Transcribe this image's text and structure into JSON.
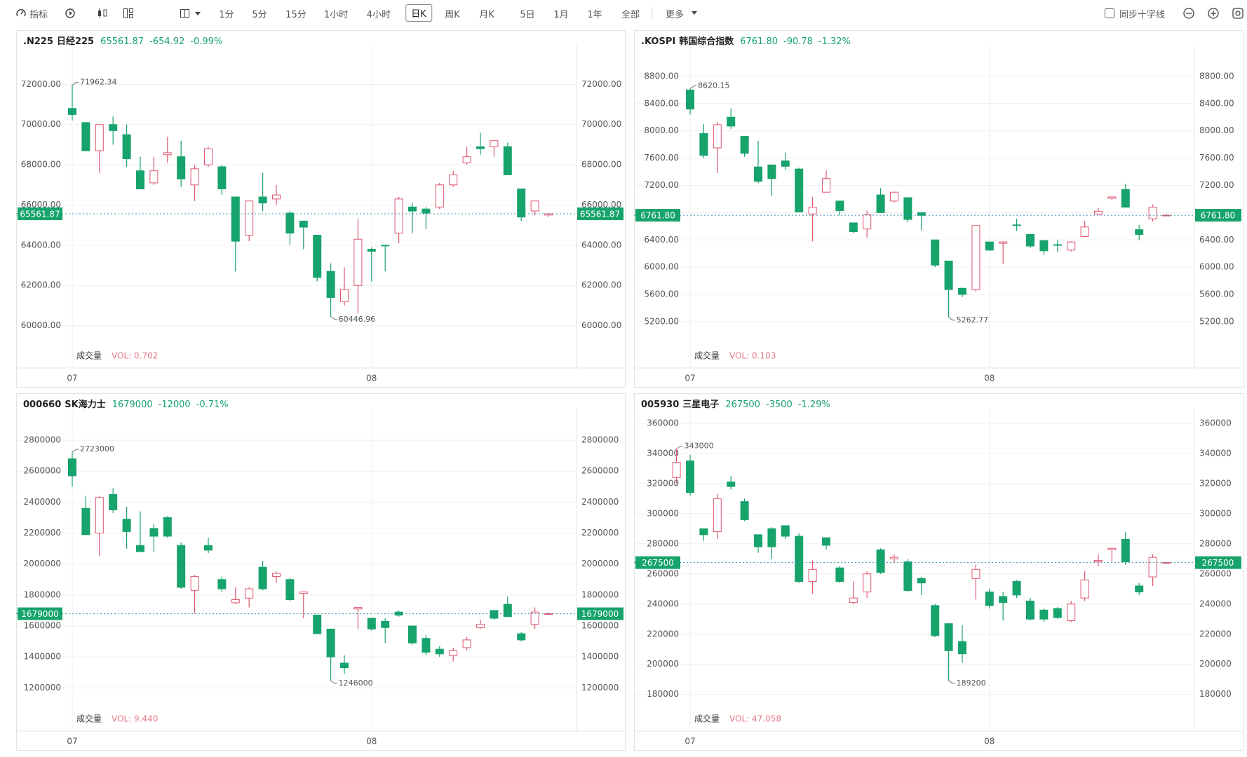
{
  "toolbar": {
    "indicator": "指标",
    "intervals": [
      "1分",
      "5分",
      "15分",
      "1小时",
      "4小时",
      "日K",
      "周K",
      "月K",
      "5日",
      "1月",
      "1年",
      "全部"
    ],
    "more": "更多",
    "sync": "同步十字线"
  },
  "chart_data": [
    {
      "type": "candlestick",
      "symbol": ".N225",
      "name": "日经225",
      "price": "65561.87",
      "change": "-654.92",
      "change_pct": "-0.99%",
      "volume_title": "成交量",
      "volume_label": "VOL: 0.702",
      "up_color": "#e0566e",
      "down_color": "#16a36c",
      "categories": [
        "07",
        null,
        null,
        null,
        null,
        null,
        null,
        null,
        null,
        null,
        null,
        null,
        null,
        null,
        null,
        null,
        null,
        null,
        null,
        null,
        null,
        null,
        "08",
        null,
        null,
        null,
        null,
        null,
        null,
        null,
        null,
        null,
        null,
        null,
        null,
        null
      ],
      "open": [
        70800,
        70100,
        68700,
        70000,
        69500,
        67700,
        67100,
        68500,
        68400,
        67000,
        68000,
        67900,
        66400,
        64500,
        66400,
        66300,
        65600,
        65200,
        64500,
        62700,
        61200,
        62000,
        63800,
        64000,
        64600,
        65900,
        65800,
        65900,
        67000,
        68100,
        68900,
        68900,
        68900,
        66800,
        65700,
        65500
      ],
      "high": [
        71962.34,
        70100,
        70000,
        70400,
        70000,
        68400,
        68400,
        69400,
        69200,
        68000,
        68900,
        68000,
        66400,
        66200,
        67600,
        67000,
        65700,
        65200,
        64500,
        63100,
        62900,
        65300,
        63900,
        64000,
        66400,
        66100,
        65900,
        67100,
        67700,
        68900,
        69600,
        69200,
        69100,
        66800,
        66200,
        65600
      ],
      "low": [
        70200,
        68700,
        67600,
        69000,
        67900,
        66800,
        67000,
        68100,
        66900,
        66200,
        67900,
        66500,
        62700,
        64200,
        65700,
        66000,
        64000,
        63800,
        62200,
        60446.96,
        61000,
        60600,
        62200,
        62700,
        64100,
        64600,
        64800,
        65800,
        66900,
        68000,
        68500,
        68400,
        67500,
        65200,
        65500,
        65400
      ],
      "close": [
        70500,
        68700,
        70000,
        69700,
        68300,
        66800,
        67700,
        68600,
        67300,
        67800,
        68800,
        66800,
        64200,
        66200,
        66100,
        66500,
        64600,
        64900,
        62400,
        61400,
        61800,
        64300,
        63700,
        63990,
        66300,
        65700,
        65600,
        67000,
        67500,
        68400,
        68800,
        69200,
        67500,
        65400,
        66200,
        65561.87
      ],
      "ylim": [
        59080,
        73720
      ],
      "yticks": [
        {
          "value": 60000,
          "label": "60000.00"
        },
        {
          "value": 62000,
          "label": "62000.00"
        },
        {
          "value": 64000,
          "label": "64000.00"
        },
        {
          "value": 66000,
          "label": "66000.00"
        },
        {
          "value": 68000,
          "label": "68000.00"
        },
        {
          "value": 70000,
          "label": "70000.00"
        },
        {
          "value": 72000,
          "label": "72000.00"
        }
      ]
    },
    {
      "type": "candlestick",
      "symbol": ".KOSPI",
      "name": "韩国综合指数",
      "price": "6761.80",
      "change": "-90.78",
      "change_pct": "-1.32%",
      "volume_title": "成交量",
      "volume_label": "VOL: 0.103",
      "up_color": "#e0566e",
      "down_color": "#16a36c",
      "categories": [
        "07",
        null,
        null,
        null,
        null,
        null,
        null,
        null,
        null,
        null,
        null,
        null,
        null,
        null,
        null,
        null,
        null,
        null,
        null,
        null,
        null,
        null,
        "08",
        null,
        null,
        null,
        null,
        null,
        null,
        null,
        null,
        null,
        null,
        null,
        null,
        null
      ],
      "open": [
        8600,
        7960,
        7750,
        8200,
        7920,
        7470,
        7500,
        7560,
        7440,
        6780,
        7100,
        6970,
        6650,
        6560,
        7060,
        6970,
        7020,
        6800,
        6400,
        6090,
        5690,
        5670,
        6370,
        6350,
        6620,
        6480,
        6390,
        6330,
        6250,
        6450,
        6780,
        7010,
        7140,
        6550,
        6710,
        6760
      ],
      "high": [
        8620.15,
        8100,
        8130,
        8330,
        7920,
        7850,
        7500,
        7680,
        7460,
        7030,
        7420,
        6970,
        6650,
        6830,
        7160,
        7100,
        7020,
        6800,
        6400,
        6090,
        5700,
        6610,
        6370,
        6380,
        6710,
        6480,
        6390,
        6400,
        6380,
        6680,
        6870,
        7040,
        7220,
        6620,
        6920,
        6780
      ],
      "low": [
        8240,
        7600,
        7380,
        8030,
        7620,
        7230,
        7050,
        7430,
        6810,
        6380,
        7100,
        6760,
        6500,
        6430,
        6800,
        6950,
        6660,
        6540,
        6000,
        5262.77,
        5560,
        5640,
        6240,
        6050,
        6530,
        6280,
        6180,
        6220,
        6230,
        6440,
        6770,
        6990,
        6880,
        6400,
        6670,
        6750
      ],
      "close": [
        8320,
        7640,
        8090,
        8070,
        7670,
        7260,
        7300,
        7480,
        6810,
        6880,
        7300,
        6830,
        6520,
        6770,
        6800,
        7100,
        6700,
        6760,
        6030,
        5670,
        5600,
        6610,
        6250,
        6370,
        6610,
        6310,
        6240,
        6320,
        6370,
        6590,
        6820,
        7030,
        6880,
        6480,
        6880,
        6761.8
      ],
      "ylim": [
        4870,
        9190
      ],
      "yticks": [
        {
          "value": 5200,
          "label": "5200.00"
        },
        {
          "value": 5600,
          "label": "5600.00"
        },
        {
          "value": 6000,
          "label": "6000.00"
        },
        {
          "value": 6400,
          "label": "6400.00"
        },
        {
          "value": 6800,
          "label": "6800.00"
        },
        {
          "value": 7200,
          "label": "7200.00"
        },
        {
          "value": 7600,
          "label": "7600.00"
        },
        {
          "value": 8000,
          "label": "8000.00"
        },
        {
          "value": 8400,
          "label": "8400.00"
        },
        {
          "value": 8800,
          "label": "8800.00"
        }
      ]
    },
    {
      "type": "candlestick",
      "symbol": "000660",
      "name": "SK海力士",
      "price": "1679000",
      "change": "-12000",
      "change_pct": "-0.71%",
      "volume_title": "成交量",
      "volume_label": "VOL: 9.440",
      "up_color": "#e0566e",
      "down_color": "#16a36c",
      "categories": [
        "07",
        null,
        null,
        null,
        null,
        null,
        null,
        null,
        null,
        null,
        null,
        null,
        null,
        null,
        null,
        null,
        null,
        null,
        null,
        null,
        null,
        null,
        "08",
        null,
        null,
        null,
        null,
        null,
        null,
        null,
        null,
        null,
        null,
        null,
        null,
        null
      ],
      "open": [
        2680000,
        2360000,
        2200000,
        2450000,
        2290000,
        2120000,
        2230000,
        2300000,
        2120000,
        1830000,
        2120000,
        1900000,
        1750000,
        1780000,
        1980000,
        1920000,
        1900000,
        1810000,
        1670000,
        1580000,
        1360000,
        1710000,
        1650000,
        1630000,
        1690000,
        1600000,
        1520000,
        1450000,
        1410000,
        1460000,
        1590000,
        1700000,
        1740000,
        1550000,
        1610000,
        1678000
      ],
      "high": [
        2723000,
        2440000,
        2440000,
        2490000,
        2370000,
        2340000,
        2260000,
        2310000,
        2140000,
        1930000,
        2170000,
        1920000,
        1850000,
        1850000,
        2020000,
        1950000,
        1910000,
        1820000,
        1670000,
        1580000,
        1410000,
        1720000,
        1650000,
        1650000,
        1700000,
        1600000,
        1540000,
        1470000,
        1460000,
        1530000,
        1640000,
        1700000,
        1790000,
        1560000,
        1720000,
        1690000
      ],
      "low": [
        2500000,
        2190000,
        2050000,
        2330000,
        2100000,
        2080000,
        2080000,
        2170000,
        1840000,
        1680000,
        2070000,
        1820000,
        1740000,
        1720000,
        1830000,
        1880000,
        1760000,
        1650000,
        1550000,
        1246000,
        1290000,
        1580000,
        1570000,
        1490000,
        1660000,
        1480000,
        1410000,
        1400000,
        1370000,
        1440000,
        1580000,
        1640000,
        1660000,
        1500000,
        1580000,
        1670000
      ],
      "close": [
        2570000,
        2190000,
        2430000,
        2350000,
        2210000,
        2080000,
        2180000,
        2180000,
        1850000,
        1920000,
        2090000,
        1840000,
        1770000,
        1840000,
        1840000,
        1940000,
        1770000,
        1820000,
        1550000,
        1400000,
        1330000,
        1720000,
        1580000,
        1590000,
        1670000,
        1490000,
        1430000,
        1420000,
        1440000,
        1510000,
        1610000,
        1650000,
        1660000,
        1510000,
        1690000,
        1679000
      ],
      "ylim": [
        1075000,
        2977000
      ],
      "yticks": [
        1200000,
        1400000,
        1600000,
        1800000,
        2000000,
        2200000,
        2400000,
        2600000,
        2800000
      ]
    },
    {
      "type": "candlestick",
      "symbol": "005930",
      "name": "三星电子",
      "price": "267500",
      "change": "-3500",
      "change_pct": "-1.29%",
      "volume_title": "成交量",
      "volume_label": "VOL: 47.058",
      "up_color": "#e0566e",
      "down_color": "#16a36c",
      "categories": [
        null,
        "07",
        null,
        null,
        null,
        null,
        null,
        null,
        null,
        null,
        null,
        null,
        null,
        null,
        null,
        null,
        null,
        null,
        null,
        null,
        null,
        null,
        null,
        "08",
        null,
        null,
        null,
        null,
        null,
        null,
        null,
        null,
        null,
        null,
        null,
        null,
        null
      ],
      "open": [
        324000,
        335000,
        290000,
        288000,
        321000,
        308000,
        286000,
        290000,
        292000,
        285000,
        255000,
        284000,
        264000,
        241000,
        248000,
        276000,
        270000,
        268000,
        257000,
        239000,
        227000,
        215000,
        257000,
        248000,
        245000,
        255000,
        242000,
        236000,
        237000,
        229000,
        244000,
        268000,
        276000,
        283000,
        252000,
        258000,
        267000
      ],
      "high": [
        343000,
        339000,
        290000,
        313000,
        325000,
        310000,
        286000,
        291000,
        292000,
        287000,
        269000,
        284000,
        265000,
        255000,
        262000,
        277000,
        273000,
        270000,
        258000,
        240000,
        227000,
        226000,
        266000,
        250000,
        248000,
        256000,
        244000,
        237000,
        238000,
        242000,
        262000,
        273000,
        277000,
        288000,
        254000,
        273000,
        268000
      ],
      "low": [
        320000,
        312000,
        282000,
        283000,
        316000,
        295000,
        274000,
        270000,
        283000,
        254000,
        247000,
        276000,
        254000,
        240000,
        244000,
        260000,
        267000,
        248000,
        246000,
        218000,
        189200,
        201000,
        243000,
        237000,
        229000,
        244000,
        229000,
        228000,
        230000,
        228000,
        242000,
        265000,
        268000,
        266000,
        246000,
        252000,
        267000
      ],
      "close": [
        334000,
        314000,
        286000,
        310000,
        318000,
        296000,
        278000,
        278000,
        285000,
        255000,
        263000,
        279000,
        255000,
        244000,
        260000,
        261000,
        271000,
        249000,
        254000,
        219000,
        209000,
        207000,
        263000,
        239000,
        241000,
        246000,
        230000,
        230000,
        231000,
        240000,
        256000,
        269000,
        277000,
        268000,
        248000,
        271000,
        267500
      ],
      "ylim": [
        171500,
        366900
      ],
      "yticks": [
        180000,
        200000,
        220000,
        240000,
        260000,
        280000,
        300000,
        320000,
        340000,
        360000
      ]
    }
  ]
}
